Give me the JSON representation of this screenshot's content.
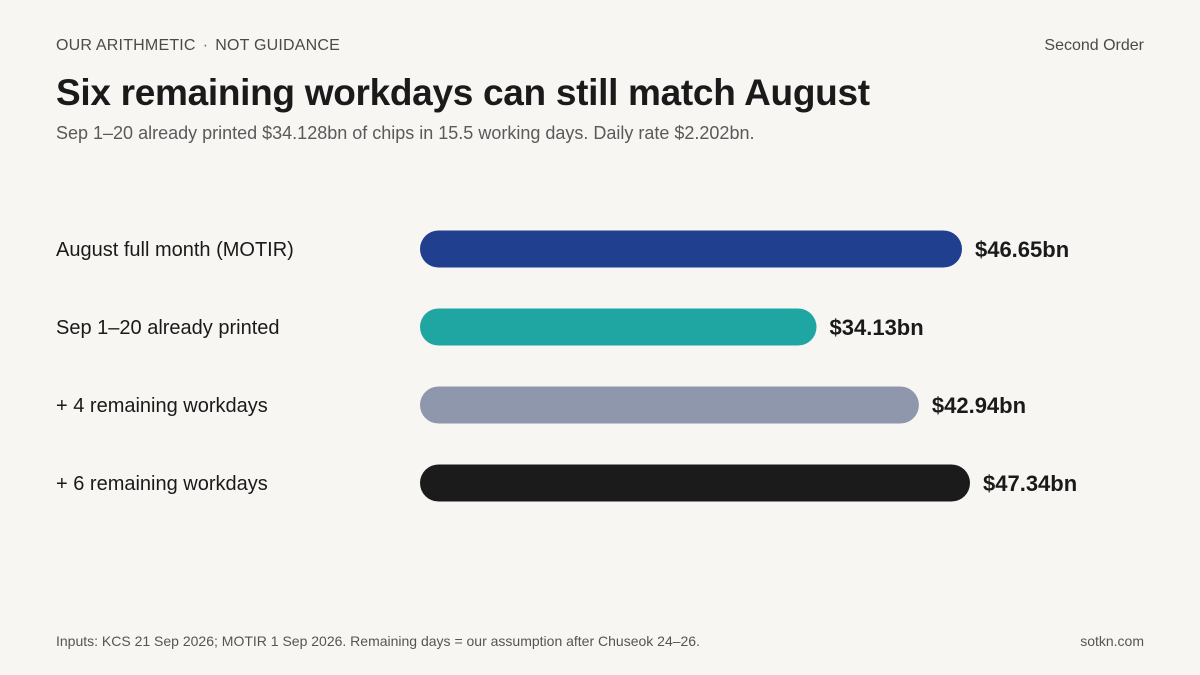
{
  "header": {
    "kicker_left": "OUR ARITHMETIC",
    "kicker_sep": "·",
    "kicker_right": "NOT GUIDANCE",
    "brand": "Second Order",
    "title": "Six remaining workdays can still match August",
    "subtitle": "Sep 1–20 already printed $34.128bn of chips in 15.5 working days. Daily rate $2.202bn."
  },
  "footer": {
    "note": "Inputs: KCS 21 Sep 2026; MOTIR 1 Sep 2026. Remaining days = our assumption after Chuseok 24–26.",
    "site": "sotkn.com"
  },
  "chart_data": {
    "type": "bar",
    "orientation": "horizontal",
    "categories": [
      "August full month (MOTIR)",
      "Sep 1–20 already printed",
      "+ 4 remaining workdays",
      "+ 6 remaining workdays"
    ],
    "values": [
      46.65,
      34.13,
      42.94,
      47.34
    ],
    "value_labels": [
      "$46.65bn",
      "$34.13bn",
      "$42.94bn",
      "$47.34bn"
    ],
    "colors": [
      "#213f8f",
      "#20a6a2",
      "#8e97ab",
      "#1b1b1b"
    ],
    "xlim": [
      0,
      47.34
    ],
    "grid": false,
    "title": "",
    "xlabel": "",
    "ylabel": ""
  }
}
